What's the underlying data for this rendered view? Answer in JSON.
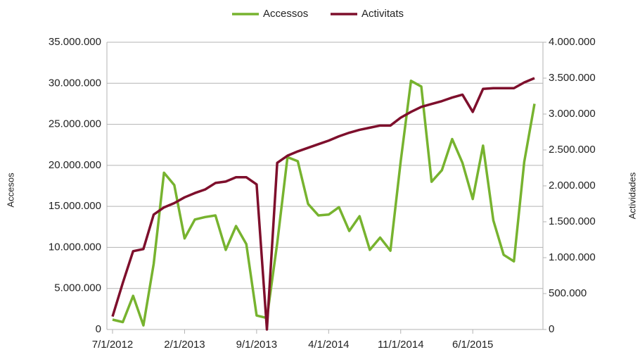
{
  "chart_data": {
    "type": "line",
    "categories": [
      "7/1/2012",
      null,
      null,
      null,
      null,
      null,
      null,
      "2/1/2013",
      null,
      null,
      null,
      null,
      null,
      null,
      "9/1/2013",
      null,
      null,
      null,
      null,
      null,
      null,
      "4/1/2014",
      null,
      null,
      null,
      null,
      null,
      null,
      "11/1/2014",
      null,
      null,
      null,
      null,
      null,
      null,
      "6/1/2015",
      null,
      null,
      null,
      null,
      null,
      null
    ],
    "series": [
      {
        "name": "Accessos",
        "color": "#77b32f",
        "values": [
          1200000,
          900000,
          4100000,
          500000,
          8000000,
          19100000,
          17600000,
          11100000,
          13400000,
          13700000,
          13900000,
          9700000,
          12600000,
          10400000,
          1700000,
          1400000,
          10500000,
          21000000,
          20500000,
          15300000,
          13900000,
          14000000,
          14900000,
          12000000,
          13800000,
          9700000,
          11200000,
          9600000,
          20500000,
          30300000,
          29600000,
          18000000,
          19400000,
          23200000,
          20300000,
          15900000,
          22400000,
          13300000,
          9100000,
          8300000,
          20400000,
          27500000
        ]
      },
      {
        "name": "Activitats",
        "color": "#7e0f2c",
        "axis": "y2",
        "values": [
          180000,
          650000,
          1090000,
          1120000,
          1600000,
          1700000,
          1760000,
          1840000,
          1900000,
          1950000,
          2040000,
          2060000,
          2120000,
          2120000,
          2020000,
          0,
          2320000,
          2420000,
          2480000,
          2530000,
          2580000,
          2630000,
          2690000,
          2740000,
          2780000,
          2810000,
          2840000,
          2840000,
          2950000,
          3030000,
          3100000,
          3140000,
          3180000,
          3230000,
          3270000,
          3030000,
          3350000,
          3360000,
          3360000,
          3360000,
          3440000,
          3500000
        ]
      }
    ],
    "ylabel": "Accesos",
    "y2label": "Actividades",
    "ylim": [
      0,
      35000000
    ],
    "yticks": [
      0,
      {
        "value": 5000000,
        "label": "5.000.000"
      },
      {
        "value": 10000000,
        "label": "10.000.000"
      },
      {
        "value": 15000000,
        "label": "15.000.000"
      },
      {
        "value": 20000000,
        "label": "20.000.000"
      },
      {
        "value": 25000000,
        "label": "25.000.000"
      },
      {
        "value": 30000000,
        "label": "30.000.000"
      },
      {
        "value": 35000000,
        "label": "35.000.000"
      }
    ],
    "y2lim": [
      0,
      4000000
    ],
    "y2ticks": [
      0,
      {
        "value": 500000,
        "label": "500.000"
      },
      {
        "value": 1000000,
        "label": "1.000.000"
      },
      {
        "value": 1500000,
        "label": "1.500.000"
      },
      {
        "value": 2000000,
        "label": "2.000.000"
      },
      {
        "value": 2500000,
        "label": "2.500.000"
      },
      {
        "value": 3000000,
        "label": "3.000.000"
      },
      {
        "value": 3500000,
        "label": "3.500.000"
      },
      {
        "value": 4000000,
        "label": "4.000.000"
      }
    ],
    "grid": true,
    "legend": "top"
  }
}
